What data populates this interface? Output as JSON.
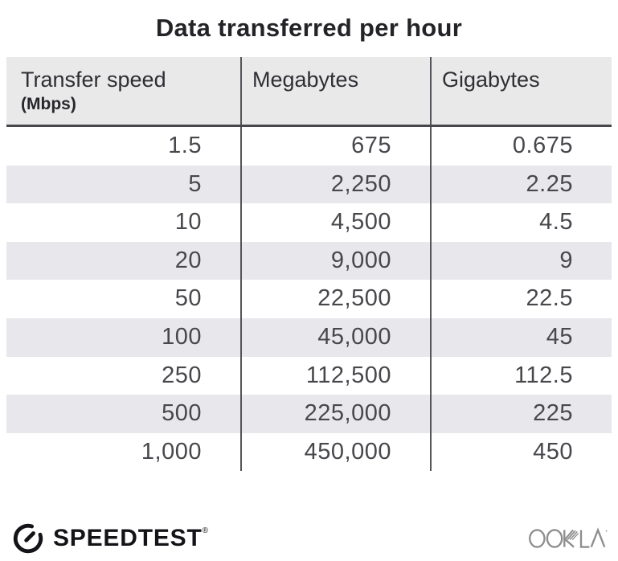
{
  "title": "Data transferred per hour",
  "table": {
    "columns": [
      {
        "label": "Transfer speed",
        "sublabel": "(Mbps)"
      },
      {
        "label": "Megabytes"
      },
      {
        "label": "Gigabytes"
      }
    ],
    "rows": [
      [
        "1.5",
        "675",
        "0.675"
      ],
      [
        "5",
        "2,250",
        "2.25"
      ],
      [
        "10",
        "4,500",
        "4.5"
      ],
      [
        "20",
        "9,000",
        "9"
      ],
      [
        "50",
        "22,500",
        "22.5"
      ],
      [
        "100",
        "45,000",
        "45"
      ],
      [
        "250",
        "112,500",
        "112.5"
      ],
      [
        "500",
        "225,000",
        "225"
      ],
      [
        "1,000",
        "450,000",
        "450"
      ]
    ]
  },
  "chart_data": {
    "type": "table",
    "title": "Data transferred per hour",
    "columns": [
      "Transfer speed (Mbps)",
      "Megabytes",
      "Gigabytes"
    ],
    "rows": [
      [
        1.5,
        675,
        0.675
      ],
      [
        5,
        2250,
        2.25
      ],
      [
        10,
        4500,
        4.5
      ],
      [
        20,
        9000,
        9
      ],
      [
        50,
        22500,
        22.5
      ],
      [
        100,
        45000,
        45
      ],
      [
        250,
        112500,
        112.5
      ],
      [
        500,
        225000,
        225
      ],
      [
        1000,
        450000,
        450
      ]
    ],
    "layout": {
      "striped_rows": true,
      "column_dividers": true,
      "value_alignment": "right"
    }
  },
  "footer": {
    "speedtest_label": "SPEEDTEST",
    "speedtest_trademark": "®",
    "ookla_label": "OOKLA"
  },
  "colors": {
    "background": "#ffffff",
    "title_text": "#242428",
    "header_background": "#e9e9ea",
    "header_text": "#2e2e33",
    "header_border": "#47474b",
    "divider": "#54545a",
    "stripe": "#e8e8ec",
    "cell_text": "#47474c",
    "speedtest_logo": "#141418",
    "ookla_logo": "#8e8e8e"
  }
}
